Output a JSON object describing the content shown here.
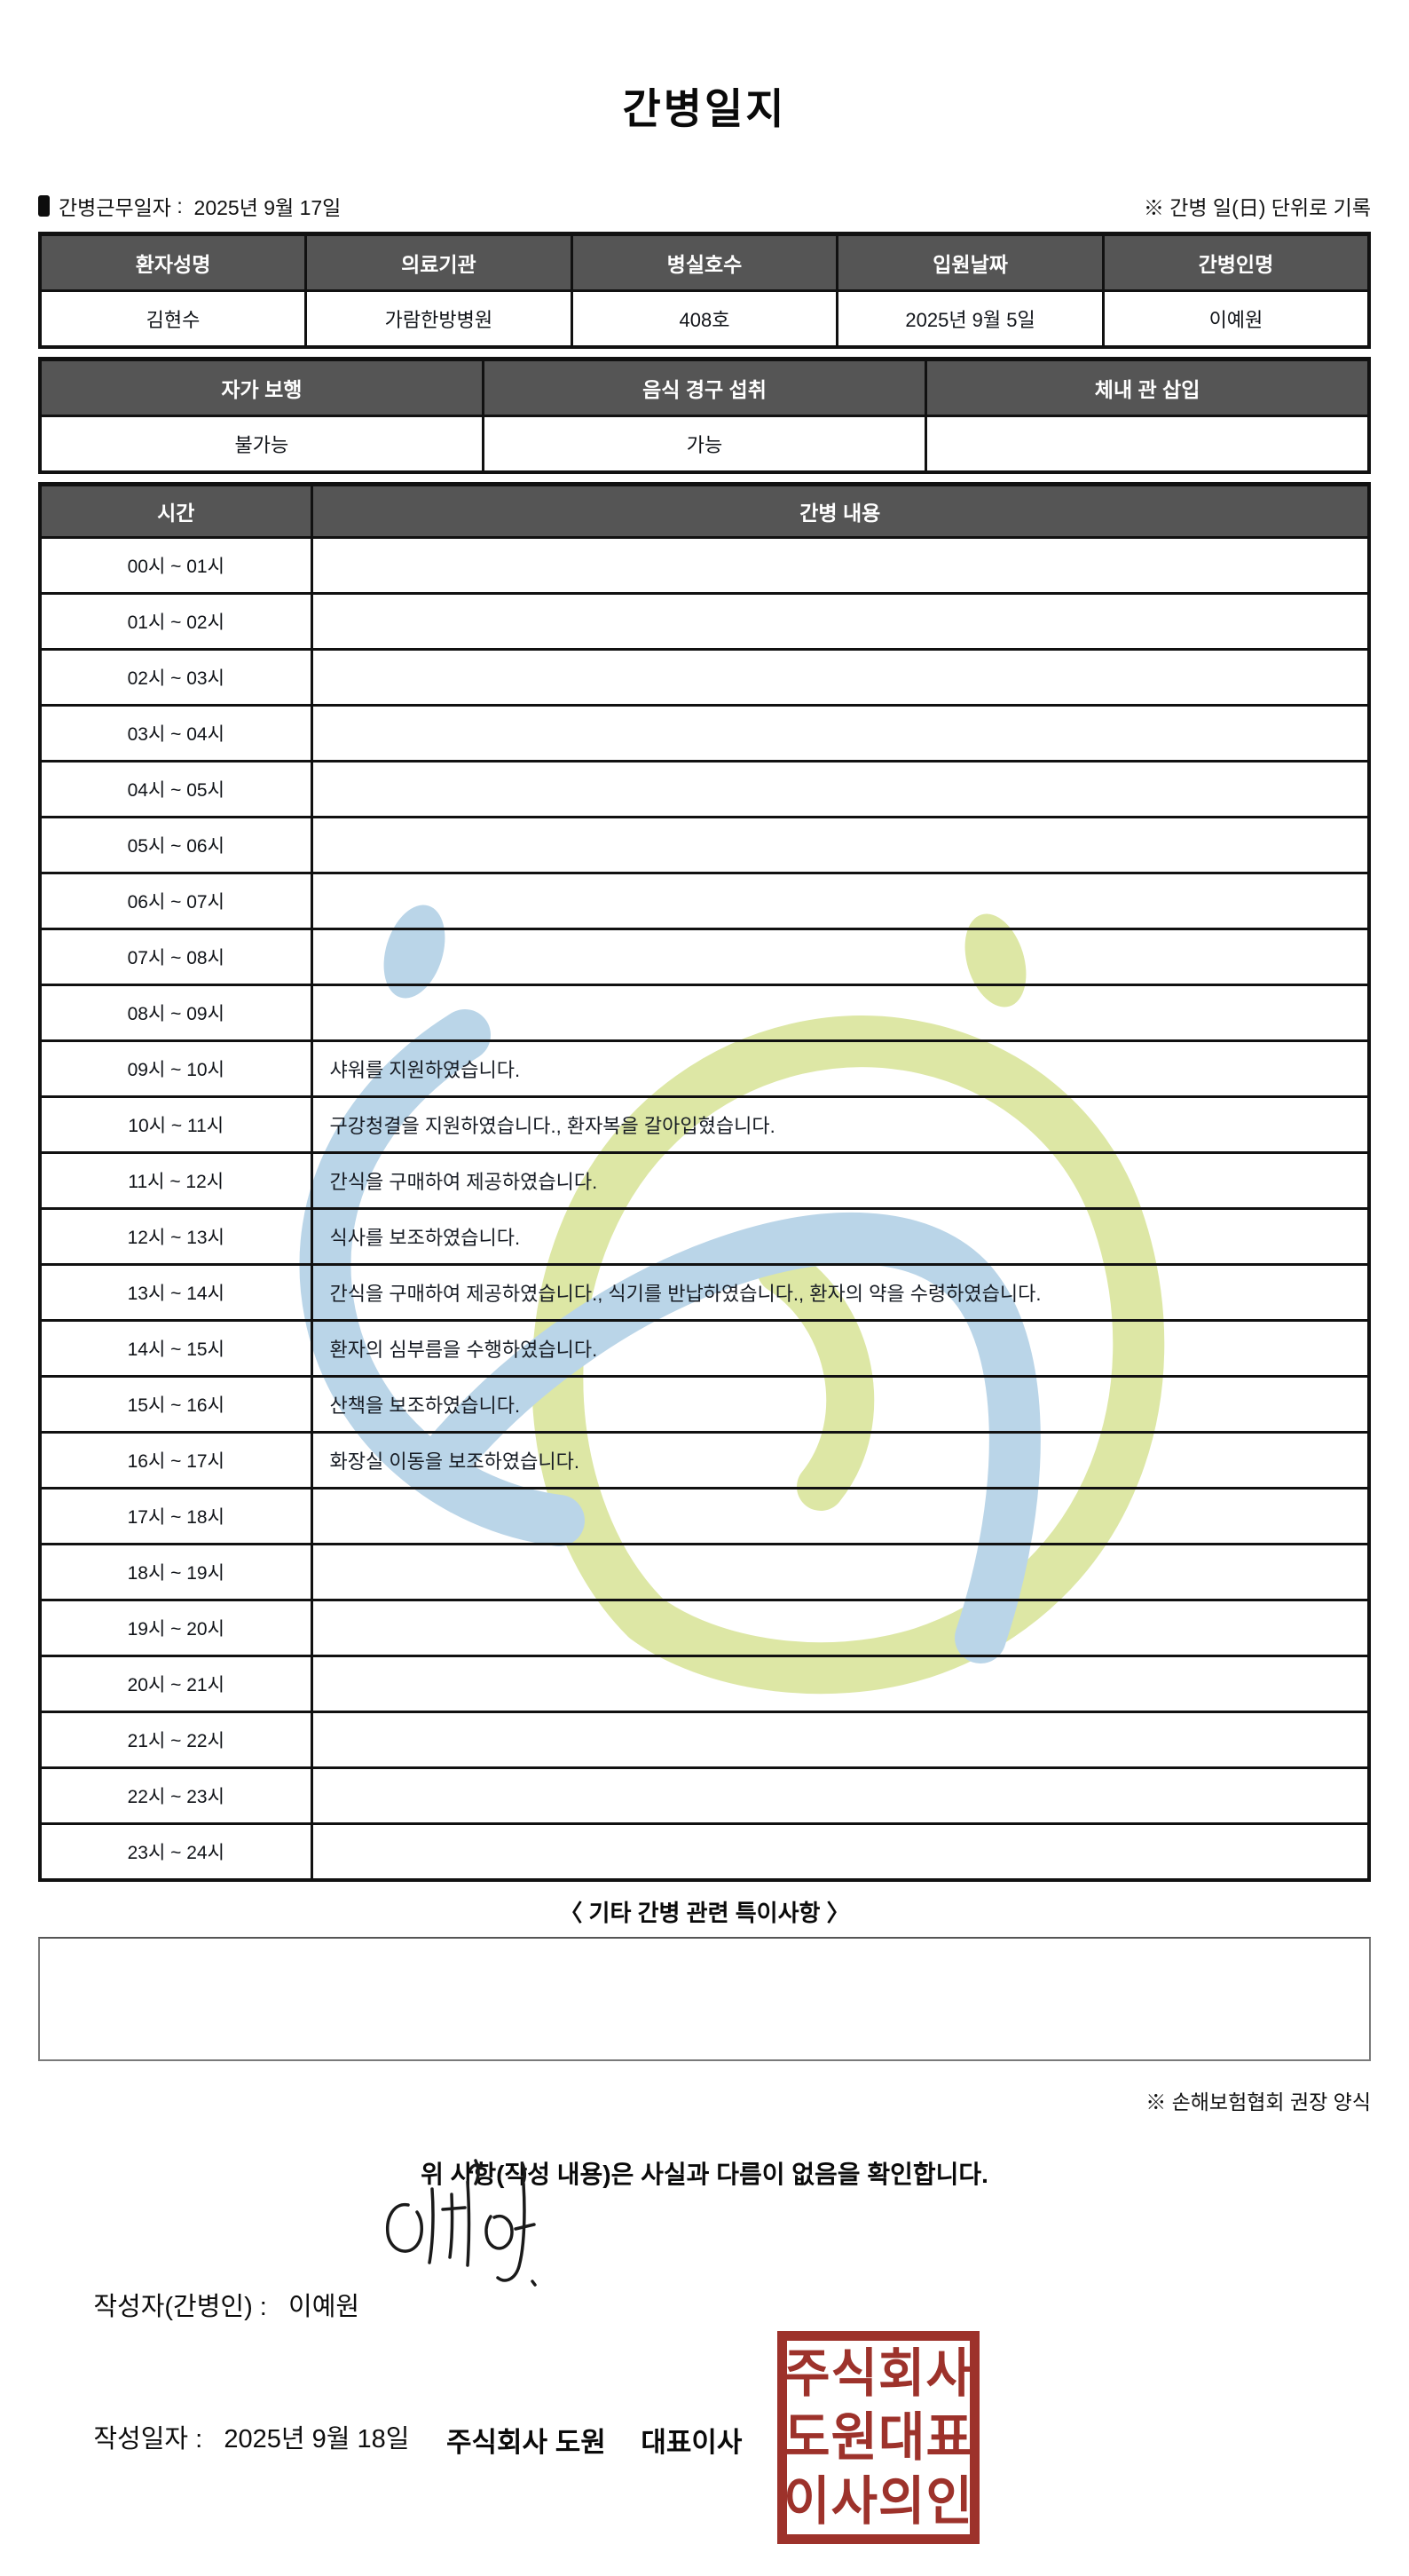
{
  "title": "간병일지",
  "meta": {
    "work_date_label": "간병근무일자",
    "work_date_separator": " :  ",
    "work_date": "2025년 9월 17일",
    "unit_note": "※ 간병 일(日) 단위로 기록"
  },
  "patient_info": {
    "headers": [
      "환자성명",
      "의료기관",
      "병실호수",
      "입원날짜",
      "간병인명"
    ],
    "values": [
      "김현수",
      "가람한방병원",
      "408호",
      "2025년 9월 5일",
      "이예원"
    ]
  },
  "status_info": {
    "headers": [
      "자가 보행",
      "음식 경구 섭취",
      "체내 관 삽입"
    ],
    "values": [
      "불가능",
      "가능",
      ""
    ]
  },
  "schedule": {
    "time_header": "시간",
    "content_header": "간병 내용",
    "rows": [
      {
        "time": "00시 ~ 01시",
        "content": ""
      },
      {
        "time": "01시 ~ 02시",
        "content": ""
      },
      {
        "time": "02시 ~ 03시",
        "content": ""
      },
      {
        "time": "03시 ~ 04시",
        "content": ""
      },
      {
        "time": "04시 ~ 05시",
        "content": ""
      },
      {
        "time": "05시 ~ 06시",
        "content": ""
      },
      {
        "time": "06시 ~ 07시",
        "content": ""
      },
      {
        "time": "07시 ~ 08시",
        "content": ""
      },
      {
        "time": "08시 ~ 09시",
        "content": ""
      },
      {
        "time": "09시 ~ 10시",
        "content": "샤워를 지원하였습니다."
      },
      {
        "time": "10시 ~ 11시",
        "content": "구강청결을 지원하였습니다., 환자복을 갈아입혔습니다."
      },
      {
        "time": "11시 ~ 12시",
        "content": "간식을 구매하여 제공하였습니다."
      },
      {
        "time": "12시 ~ 13시",
        "content": "식사를 보조하였습니다."
      },
      {
        "time": "13시 ~ 14시",
        "content": "간식을 구매하여 제공하였습니다., 식기를 반납하였습니다., 환자의 약을 수령하였습니다."
      },
      {
        "time": "14시 ~ 15시",
        "content": "환자의 심부름을 수행하였습니다."
      },
      {
        "time": "15시 ~ 16시",
        "content": "산책을 보조하였습니다."
      },
      {
        "time": "16시 ~ 17시",
        "content": "화장실 이동을 보조하였습니다."
      },
      {
        "time": "17시 ~ 18시",
        "content": ""
      },
      {
        "time": "18시 ~ 19시",
        "content": ""
      },
      {
        "time": "19시 ~ 20시",
        "content": ""
      },
      {
        "time": "20시 ~ 21시",
        "content": ""
      },
      {
        "time": "21시 ~ 22시",
        "content": ""
      },
      {
        "time": "22시 ~ 23시",
        "content": ""
      },
      {
        "time": "23시 ~ 24시",
        "content": ""
      }
    ]
  },
  "notes": {
    "caption": "〈 기타 간병 관련 특이사항 〉",
    "content": "",
    "recommend_note": "※ 손해보험협회 권장 양식"
  },
  "footer": {
    "confirmation": "위 사항(작성 내용)은 사실과 다름이 없음을 확인합니다.",
    "writer_label": "작성자(간병인) : ",
    "writer_name": "  이예원",
    "date_label": "작성일자 : ",
    "date_value": "  2025년 9월 18일",
    "company_line": "주식회사 도원　 대표이사",
    "stamp_lines": [
      "주식회사",
      "도원대표",
      "이사의인"
    ]
  },
  "colors": {
    "header_bg": "#555555",
    "table_border": "#111111",
    "stamp_red": "#9d322b",
    "watermark_blue": "#bad5e8",
    "watermark_green": "#dde7a5"
  }
}
